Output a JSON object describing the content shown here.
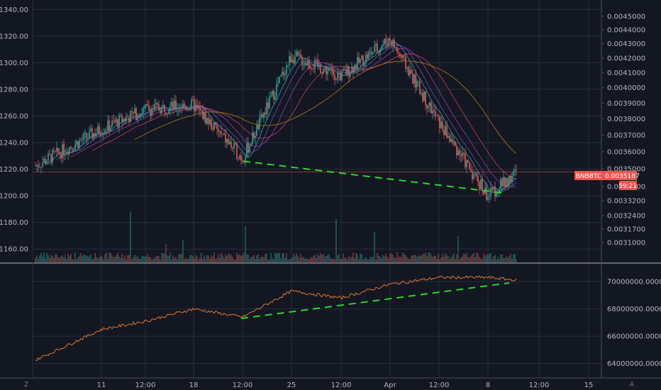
{
  "chart_data": [
    {
      "type": "candlestick",
      "symbol": "BNBBTC",
      "last_price_label": "0.0035187",
      "countdown": "59:21",
      "left_axis": {
        "ticks": [
          "1340.00",
          "1320.00",
          "1300.00",
          "1280.00",
          "1260.00",
          "1240.00",
          "1220.00",
          "1200.00",
          "1180.00",
          "1160.00"
        ],
        "range": [
          1150,
          1345
        ]
      },
      "right_axis": {
        "ticks": [
          "0.0045000",
          "0.0044000",
          "0.0043000",
          "0.0042000",
          "0.0041000",
          "0.0040000",
          "0.0039000",
          "0.0038000",
          "0.0037000",
          "0.0036000",
          "0.0035000",
          "0.0034000",
          "0.0033200",
          "0.0032400",
          "0.0031700",
          "0.0031000"
        ],
        "range": [
          0.003,
          0.0046
        ]
      },
      "x_axis": {
        "ticks": [
          "11",
          "12:00",
          "18",
          "12:00",
          "25",
          "12:00",
          "Apr",
          "12:00",
          "8",
          "12:00",
          "15"
        ]
      },
      "approx_price_path_left_units": [
        {
          "x": "start",
          "y": 1222
        },
        {
          "x": "11",
          "y": 1250
        },
        {
          "x": "12:00",
          "y": 1265
        },
        {
          "x": "18",
          "y": 1268
        },
        {
          "x": "12:00",
          "y": 1228
        },
        {
          "x": "25",
          "y": 1305
        },
        {
          "x": "12:00",
          "y": 1290
        },
        {
          "x": "Apr",
          "y": 1318
        },
        {
          "x": "12:00",
          "y": 1255
        },
        {
          "x": "8",
          "y": 1200
        },
        {
          "x": "end",
          "y": 1218
        }
      ],
      "trendline": {
        "style": "dashed",
        "color": "#2bd52b"
      },
      "current_price_line_color": "#ef5350"
    },
    {
      "type": "line",
      "panel": "indicator",
      "axis": {
        "ticks": [
          "70000000.0000",
          "68000000.0000",
          "66000000.0000",
          "64000000.0000"
        ],
        "range": [
          63000000,
          71300000
        ]
      },
      "series_color": "#e0772c",
      "approx_values": [
        {
          "x": "start",
          "y": 64200000
        },
        {
          "x": "11",
          "y": 66500000
        },
        {
          "x": "12:00",
          "y": 67100000
        },
        {
          "x": "18",
          "y": 68000000
        },
        {
          "x": "12:00",
          "y": 67400000
        },
        {
          "x": "25",
          "y": 69300000
        },
        {
          "x": "12:00",
          "y": 68800000
        },
        {
          "x": "Apr",
          "y": 69800000
        },
        {
          "x": "12:00",
          "y": 70300000
        },
        {
          "x": "8",
          "y": 70300000
        },
        {
          "x": "end",
          "y": 70100000
        }
      ],
      "trendline": {
        "style": "dashed",
        "color": "#2bd52b"
      }
    }
  ],
  "bottom_bar": {
    "left_button": "Z",
    "right_button": "A"
  }
}
